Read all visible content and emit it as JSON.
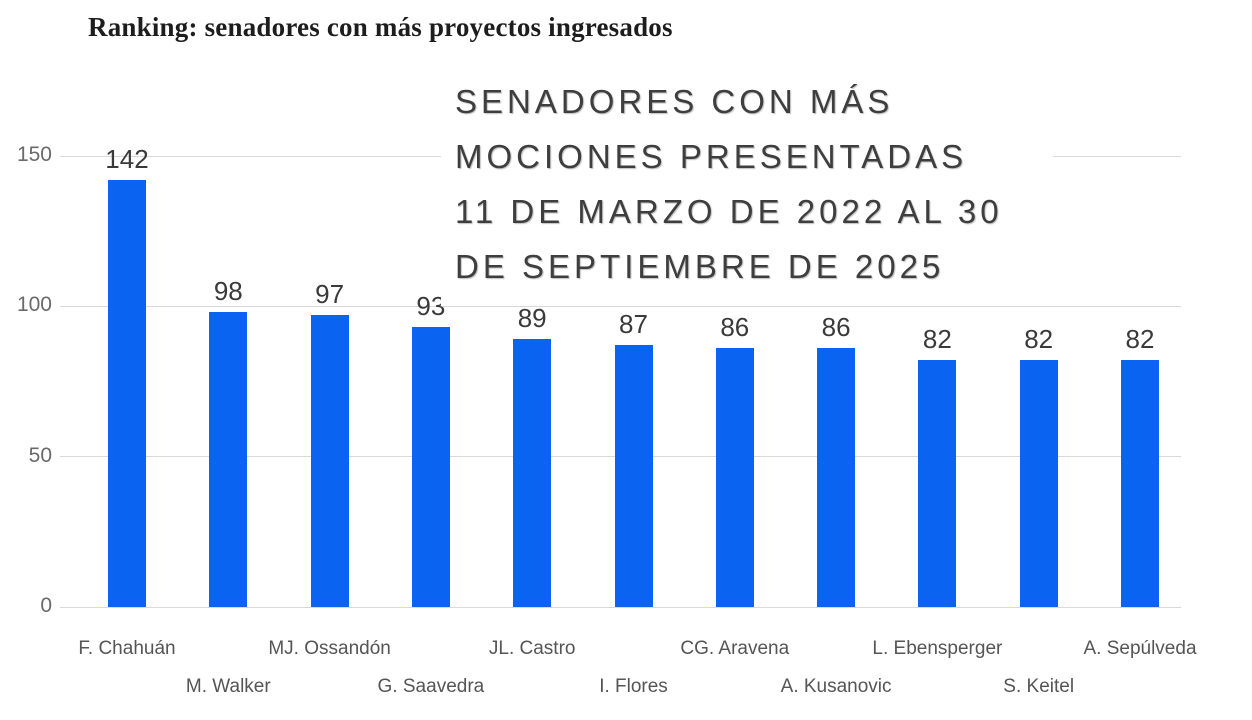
{
  "header": {
    "title": "Ranking: senadores con más proyectos ingresados"
  },
  "chart_data": {
    "type": "bar",
    "title": "SENADORES CON MÁS MOCIONES PRESENTADAS 11 DE MARZO DE 2022 AL 30 DE SEPTIEMBRE DE 2025",
    "title_lines": [
      "SENADORES CON MÁS",
      "MOCIONES PRESENTADAS",
      "11 DE MARZO DE 2022 AL 30",
      "DE SEPTIEMBRE DE 2025"
    ],
    "categories": [
      "F. Chahuán",
      "M. Walker",
      "MJ. Ossandón",
      "G. Saavedra",
      "JL. Castro",
      "I. Flores",
      "CG. Aravena",
      "A. Kusanovic",
      "L. Ebensperger",
      "S. Keitel",
      "A. Sepúlveda"
    ],
    "values": [
      142,
      98,
      97,
      93,
      89,
      87,
      86,
      86,
      82,
      82,
      82
    ],
    "xlabel": "",
    "ylabel": "",
    "yticks": [
      0,
      50,
      100,
      150
    ],
    "ylim": [
      0,
      150
    ],
    "grid": true,
    "legend": false,
    "bar_color": "#0b63f2",
    "grid_color": "#d9d9d9",
    "value_label_color": "#3a3a3a",
    "axis_label_color": "#555555"
  }
}
